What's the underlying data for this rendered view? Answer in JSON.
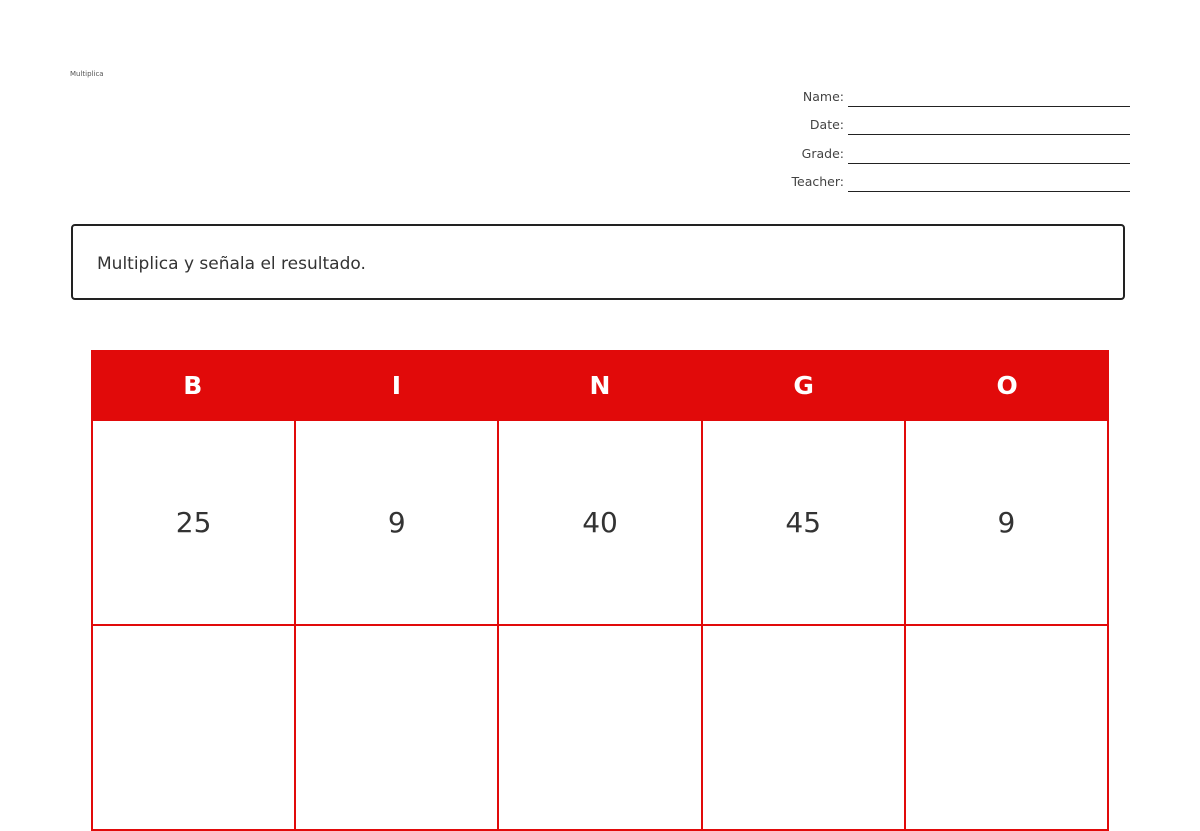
{
  "header": {
    "small_title": "Multiplica"
  },
  "fields": [
    {
      "label": "Name:"
    },
    {
      "label": "Date:"
    },
    {
      "label": "Grade:"
    },
    {
      "label": "Teacher:"
    }
  ],
  "instructions": "Multiplica y señala el resultado.",
  "bingo": {
    "color": "#e10a0a",
    "letters": [
      "B",
      "I",
      "N",
      "G",
      "O"
    ],
    "rows": [
      [
        "25",
        "9",
        "40",
        "45",
        "9"
      ],
      [
        "",
        "",
        "",
        "",
        ""
      ]
    ]
  }
}
